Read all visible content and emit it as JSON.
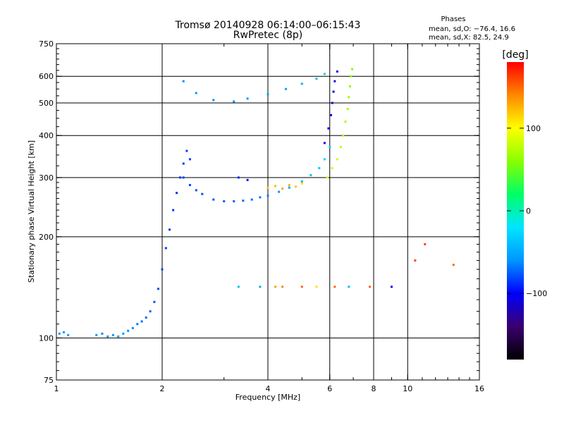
{
  "header": {
    "title": "Tromsø 20140928 06:14:00–06:15:43",
    "subtitle": "RwPretec (8p)",
    "phase_title": "Phases",
    "phase_o": "mean, sd,O: −76.4, 16.6",
    "phase_x": "mean, sd,X:  82.5, 24.9"
  },
  "colorbar": {
    "label": "[deg]",
    "range": [
      -180,
      180
    ],
    "tick_labels": [
      "100",
      "0",
      "−100"
    ],
    "tick_values": [
      100,
      0,
      -100
    ],
    "palette": [
      "#000000",
      "#3a006e",
      "#0000ff",
      "#0096ff",
      "#00e5ff",
      "#00ff66",
      "#88ff00",
      "#ffff00",
      "#ff8800",
      "#ff0000"
    ]
  },
  "chart_data": {
    "type": "scatter",
    "xlabel": "Frequency [MHz]",
    "ylabel": "Stationary phase Virtual Height [km]",
    "xscale": "log",
    "yscale": "log",
    "xlim": [
      1,
      16
    ],
    "ylim": [
      75,
      750
    ],
    "grid": true,
    "xticks": [
      1,
      2,
      4,
      6,
      8,
      10,
      16
    ],
    "xtick_labels": [
      "1",
      "2",
      "4",
      "6",
      "8",
      "10",
      "16"
    ],
    "yticks": [
      75,
      100,
      200,
      300,
      400,
      500,
      600,
      750
    ],
    "ytick_labels": [
      "75",
      "100",
      "200",
      "300",
      "400",
      "500",
      "600",
      "750"
    ],
    "x_gridlines": [
      2,
      4,
      6,
      8,
      10
    ],
    "y_gridlines": [
      100,
      200,
      300,
      400,
      500,
      600
    ],
    "series": [
      {
        "points": [
          [
            1.02,
            103,
            -60
          ],
          [
            1.05,
            104,
            -60
          ],
          [
            1.08,
            102,
            -55
          ],
          [
            1.3,
            102,
            -60
          ],
          [
            1.35,
            103,
            -65
          ],
          [
            1.4,
            101,
            -60
          ],
          [
            1.45,
            102,
            -62
          ],
          [
            1.5,
            101,
            -58
          ],
          [
            1.55,
            103,
            -60
          ],
          [
            1.6,
            105,
            -62
          ],
          [
            1.65,
            107,
            -64
          ],
          [
            1.7,
            110,
            -68
          ],
          [
            1.75,
            112,
            -70
          ],
          [
            1.8,
            115,
            -72
          ],
          [
            1.85,
            120,
            -75
          ],
          [
            1.9,
            128,
            -78
          ],
          [
            1.95,
            140,
            -80
          ],
          [
            2.0,
            160,
            -82
          ],
          [
            2.05,
            185,
            -84
          ],
          [
            2.1,
            210,
            -86
          ],
          [
            2.15,
            240,
            -88
          ],
          [
            2.2,
            270,
            -88
          ],
          [
            2.25,
            300,
            -86
          ],
          [
            2.3,
            330,
            -85
          ],
          [
            2.35,
            360,
            -85
          ],
          [
            2.4,
            340,
            -84
          ]
        ]
      },
      {
        "points": [
          [
            2.3,
            300,
            -82
          ],
          [
            2.4,
            285,
            -82
          ],
          [
            2.5,
            275,
            -80
          ],
          [
            2.6,
            268,
            -80
          ],
          [
            2.8,
            258,
            -78
          ],
          [
            3.0,
            255,
            -76
          ],
          [
            3.2,
            255,
            -75
          ],
          [
            3.4,
            256,
            -72
          ],
          [
            3.6,
            258,
            -70
          ],
          [
            3.8,
            262,
            -68
          ],
          [
            4.0,
            265,
            -65
          ],
          [
            4.3,
            272,
            -60
          ],
          [
            4.6,
            280,
            -55
          ],
          [
            5.0,
            292,
            -45
          ],
          [
            5.3,
            305,
            -40
          ],
          [
            5.6,
            320,
            -35
          ],
          [
            5.8,
            340,
            -30
          ],
          [
            6.0,
            370,
            -28
          ]
        ]
      },
      {
        "points": [
          [
            2.3,
            580,
            -62
          ],
          [
            2.5,
            535,
            -60
          ],
          [
            2.8,
            510,
            -62
          ],
          [
            3.2,
            505,
            -60
          ],
          [
            3.5,
            515,
            -58
          ],
          [
            4.0,
            530,
            -55
          ],
          [
            4.5,
            550,
            -52
          ],
          [
            5.0,
            570,
            -45
          ],
          [
            5.5,
            590,
            -40
          ],
          [
            5.8,
            610,
            -30
          ]
        ]
      },
      {
        "points": [
          [
            3.3,
            300,
            -90
          ],
          [
            3.5,
            295,
            -95
          ],
          [
            4.0,
            280,
            120
          ],
          [
            4.2,
            283,
            125
          ],
          [
            4.4,
            278,
            130
          ],
          [
            4.6,
            285,
            125
          ],
          [
            4.8,
            282,
            118
          ],
          [
            5.0,
            288,
            110
          ]
        ]
      },
      {
        "points": [
          [
            5.8,
            380,
            -110
          ],
          [
            5.95,
            420,
            -108
          ],
          [
            6.05,
            460,
            -110
          ],
          [
            6.1,
            500,
            -112
          ],
          [
            6.15,
            540,
            -110
          ],
          [
            6.2,
            580,
            -108
          ],
          [
            6.3,
            620,
            -110
          ]
        ]
      },
      {
        "points": [
          [
            5.9,
            300,
            90
          ],
          [
            6.1,
            320,
            85
          ],
          [
            6.3,
            340,
            80
          ],
          [
            6.45,
            370,
            75
          ],
          [
            6.55,
            400,
            72
          ],
          [
            6.65,
            440,
            70
          ],
          [
            6.75,
            480,
            68
          ],
          [
            6.8,
            520,
            65
          ],
          [
            6.85,
            560,
            62
          ],
          [
            6.9,
            600,
            60
          ],
          [
            6.95,
            630,
            58
          ]
        ]
      },
      {
        "points": [
          [
            3.3,
            142,
            -40
          ],
          [
            3.8,
            142,
            -50
          ],
          [
            4.2,
            142,
            130
          ],
          [
            4.4,
            142,
            140
          ],
          [
            5.0,
            142,
            150
          ],
          [
            5.5,
            142,
            110
          ],
          [
            6.2,
            142,
            150
          ],
          [
            6.8,
            142,
            -40
          ],
          [
            7.8,
            142,
            150
          ],
          [
            9.0,
            142,
            -100
          ],
          [
            10.5,
            170,
            160
          ],
          [
            11.2,
            190,
            160
          ],
          [
            13.5,
            165,
            150
          ]
        ]
      }
    ]
  }
}
